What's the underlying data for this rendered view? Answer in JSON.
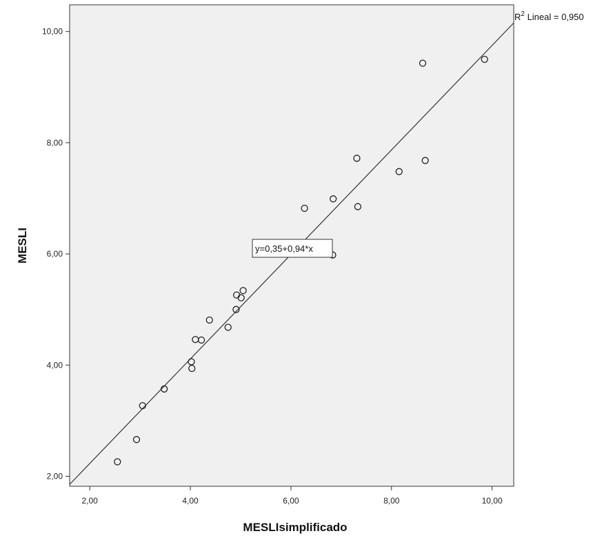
{
  "chart_data": {
    "type": "scatter",
    "xlabel": "MESLIsimplificado",
    "ylabel": "MESLI",
    "xlim": [
      1.6,
      10.43
    ],
    "ylim": [
      1.82,
      10.48
    ],
    "x_ticks": [
      2,
      4,
      6,
      8,
      10
    ],
    "y_ticks": [
      2,
      4,
      6,
      8,
      10
    ],
    "x_tick_labels": [
      "2,00",
      "4,00",
      "6,00",
      "8,00",
      "10,00"
    ],
    "y_tick_labels": [
      "2,00",
      "4,00",
      "6,00",
      "8,00",
      "10,00"
    ],
    "grid": false,
    "points": [
      {
        "x": 2.55,
        "y": 2.26
      },
      {
        "x": 2.93,
        "y": 2.66
      },
      {
        "x": 3.05,
        "y": 3.27
      },
      {
        "x": 3.48,
        "y": 3.57
      },
      {
        "x": 4.02,
        "y": 4.06
      },
      {
        "x": 4.03,
        "y": 3.94
      },
      {
        "x": 4.1,
        "y": 4.46
      },
      {
        "x": 4.22,
        "y": 4.45
      },
      {
        "x": 4.38,
        "y": 4.81
      },
      {
        "x": 4.75,
        "y": 4.68
      },
      {
        "x": 4.91,
        "y": 5.0
      },
      {
        "x": 4.92,
        "y": 5.26
      },
      {
        "x": 5.01,
        "y": 5.21
      },
      {
        "x": 5.05,
        "y": 5.34
      },
      {
        "x": 6.27,
        "y": 6.82
      },
      {
        "x": 6.83,
        "y": 5.98
      },
      {
        "x": 6.84,
        "y": 6.99
      },
      {
        "x": 7.31,
        "y": 7.72
      },
      {
        "x": 7.33,
        "y": 6.85
      },
      {
        "x": 8.15,
        "y": 7.48
      },
      {
        "x": 8.62,
        "y": 9.43
      },
      {
        "x": 8.67,
        "y": 7.68
      },
      {
        "x": 9.85,
        "y": 9.5
      }
    ],
    "fit_line": {
      "intercept": 0.35,
      "slope": 0.94
    },
    "annotations": {
      "equation": "y=0,35+0,94*x",
      "r2_prefix": "R",
      "r2_sup": "2",
      "r2_text": " Lineal = 0,950"
    },
    "colors": {
      "plot_background": "#f0f0f0",
      "marker_stroke": "#222222",
      "line": "#333333"
    }
  }
}
